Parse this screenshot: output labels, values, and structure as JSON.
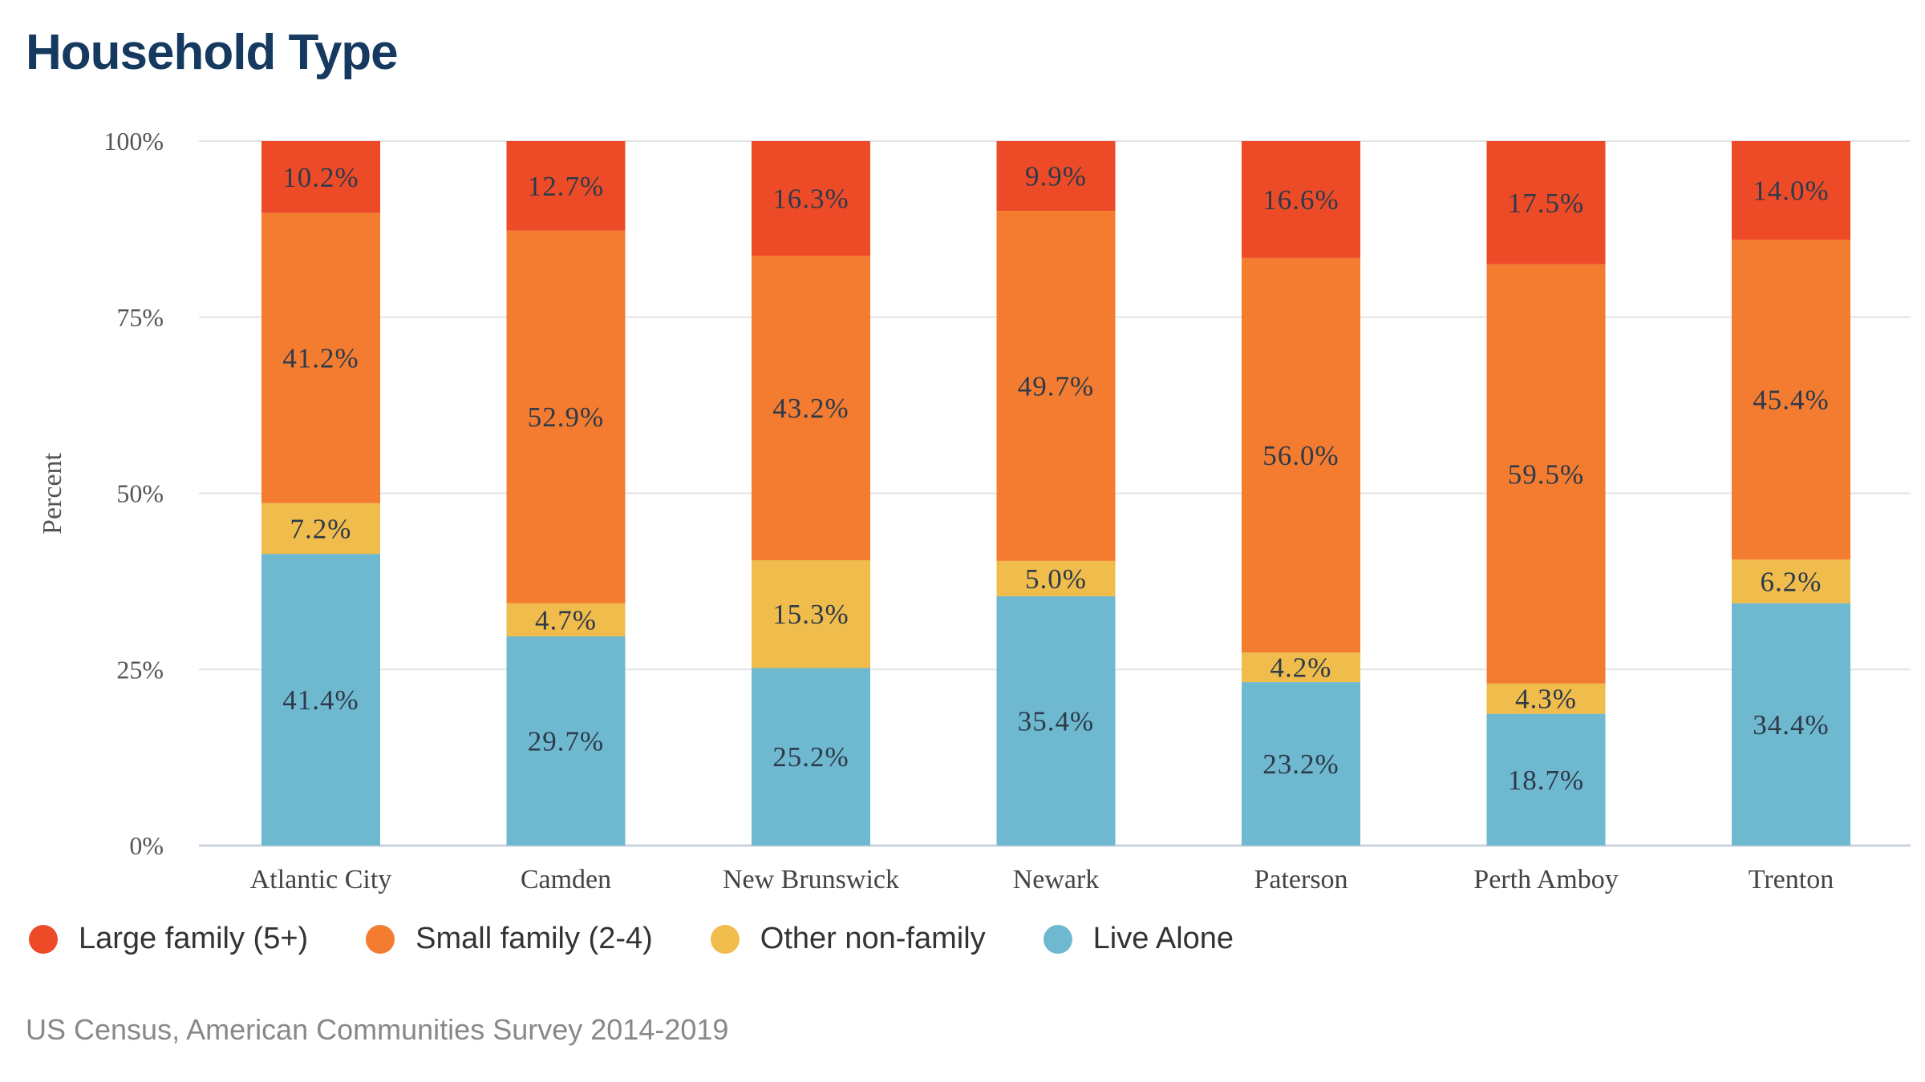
{
  "title": "Household Type",
  "source": "US Census, American Communities Survey 2014-2019",
  "chart_data": {
    "type": "bar",
    "stacked": true,
    "ylabel": "Percent",
    "xlabel": "",
    "ylim": [
      0,
      100
    ],
    "yticks": [
      {
        "value": 0,
        "label": "0%"
      },
      {
        "value": 25,
        "label": "25%"
      },
      {
        "value": 50,
        "label": "50%"
      },
      {
        "value": 75,
        "label": "75%"
      },
      {
        "value": 100,
        "label": "100%"
      }
    ],
    "grid": true,
    "legend_position": "bottom-left",
    "categories": [
      "Atlantic City",
      "Camden",
      "New Brunswick",
      "Newark",
      "Paterson",
      "Perth Amboy",
      "Trenton"
    ],
    "series": [
      {
        "name": "Live Alone",
        "color": "#6fb9d0",
        "values": [
          41.4,
          29.7,
          25.2,
          35.4,
          23.2,
          18.7,
          34.4
        ],
        "labels": [
          "41.4%",
          "29.7%",
          "25.2%",
          "35.4%",
          "23.2%",
          "18.7%",
          "34.4%"
        ]
      },
      {
        "name": "Other non-family",
        "color": "#f0bc4b",
        "values": [
          7.2,
          4.7,
          15.3,
          5.0,
          4.2,
          4.3,
          6.2
        ],
        "labels": [
          "7.2%",
          "4.7%",
          "15.3%",
          "5.0%",
          "4.2%",
          "4.3%",
          "6.2%"
        ]
      },
      {
        "name": "Small family (2-4)",
        "color": "#f47c30",
        "values": [
          41.2,
          52.9,
          43.2,
          49.7,
          56.0,
          59.5,
          45.4
        ],
        "labels": [
          "41.2%",
          "52.9%",
          "43.2%",
          "49.7%",
          "56.0%",
          "59.5%",
          "45.4%"
        ]
      },
      {
        "name": "Large family (5+)",
        "color": "#ed4b28",
        "values": [
          10.2,
          12.7,
          16.3,
          9.9,
          16.6,
          17.5,
          14.0
        ],
        "labels": [
          "10.2%",
          "12.7%",
          "16.3%",
          "9.9%",
          "16.6%",
          "17.5%",
          "14.0%"
        ]
      }
    ]
  },
  "legend": [
    {
      "label": "Large family (5+)",
      "color": "#ed4b28"
    },
    {
      "label": "Small family (2-4)",
      "color": "#f47c30"
    },
    {
      "label": "Other non-family",
      "color": "#f0bc4b"
    },
    {
      "label": "Live Alone",
      "color": "#6fb9d0"
    }
  ]
}
